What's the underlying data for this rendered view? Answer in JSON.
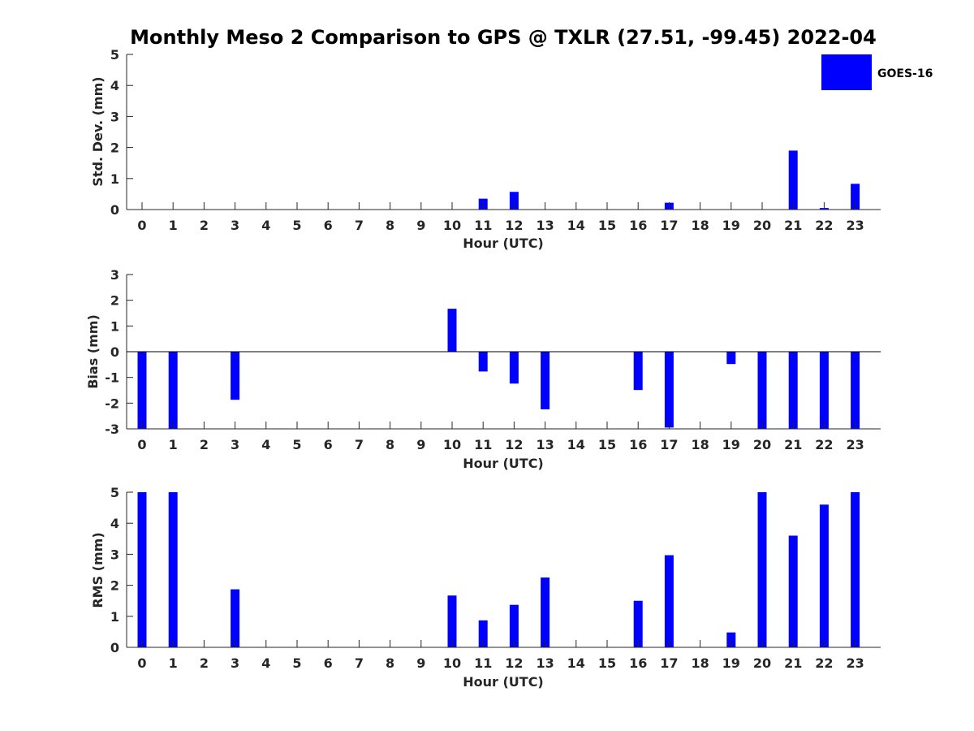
{
  "chart_data": {
    "title": "Monthly Meso 2 Comparison to GPS @ TXLR (27.51, -99.45) 2022-04",
    "type": "bar",
    "legend": {
      "position": "top-right",
      "entries": [
        "GOES-16"
      ]
    },
    "series_color": "#0000ff",
    "axis_color": "#262626",
    "categories": [
      "0",
      "1",
      "2",
      "3",
      "4",
      "5",
      "6",
      "7",
      "8",
      "9",
      "10",
      "11",
      "12",
      "13",
      "14",
      "15",
      "16",
      "17",
      "18",
      "19",
      "20",
      "21",
      "22",
      "23"
    ],
    "panels": [
      {
        "id": "std",
        "ylabel": "Std. Dev. (mm)",
        "xlabel": "Hour (UTC)",
        "ylim": [
          0,
          5
        ],
        "yticks": [
          "0",
          "1",
          "2",
          "3",
          "4",
          "5"
        ],
        "zero_line": false,
        "values": [
          0,
          0,
          0,
          0,
          0,
          0,
          0,
          0,
          0,
          0,
          0,
          0.35,
          0.57,
          0,
          0,
          0,
          0,
          0.22,
          0,
          0,
          0,
          1.9,
          0.05,
          0.83
        ]
      },
      {
        "id": "bias",
        "ylabel": "Bias (mm)",
        "xlabel": "Hour (UTC)",
        "ylim": [
          -3,
          3
        ],
        "yticks": [
          "-3",
          "-2",
          "-1",
          "0",
          "1",
          "2",
          "3"
        ],
        "zero_line": true,
        "values": [
          -3,
          -3,
          0,
          -1.87,
          0,
          0,
          0,
          0,
          0,
          0,
          1.67,
          -0.77,
          -1.24,
          -2.24,
          0,
          0,
          -1.49,
          -2.95,
          0,
          -0.48,
          -3,
          -3,
          -3,
          -3
        ]
      },
      {
        "id": "rms",
        "ylabel": "RMS (mm)",
        "xlabel": "Hour (UTC)",
        "ylim": [
          0,
          5
        ],
        "yticks": [
          "0",
          "1",
          "2",
          "3",
          "4",
          "5"
        ],
        "zero_line": false,
        "values": [
          5,
          5,
          0,
          1.87,
          0,
          0,
          0,
          0,
          0,
          0,
          1.67,
          0.87,
          1.37,
          2.25,
          0,
          0,
          1.5,
          2.97,
          0,
          0.48,
          5,
          3.6,
          4.6,
          5
        ]
      }
    ]
  }
}
